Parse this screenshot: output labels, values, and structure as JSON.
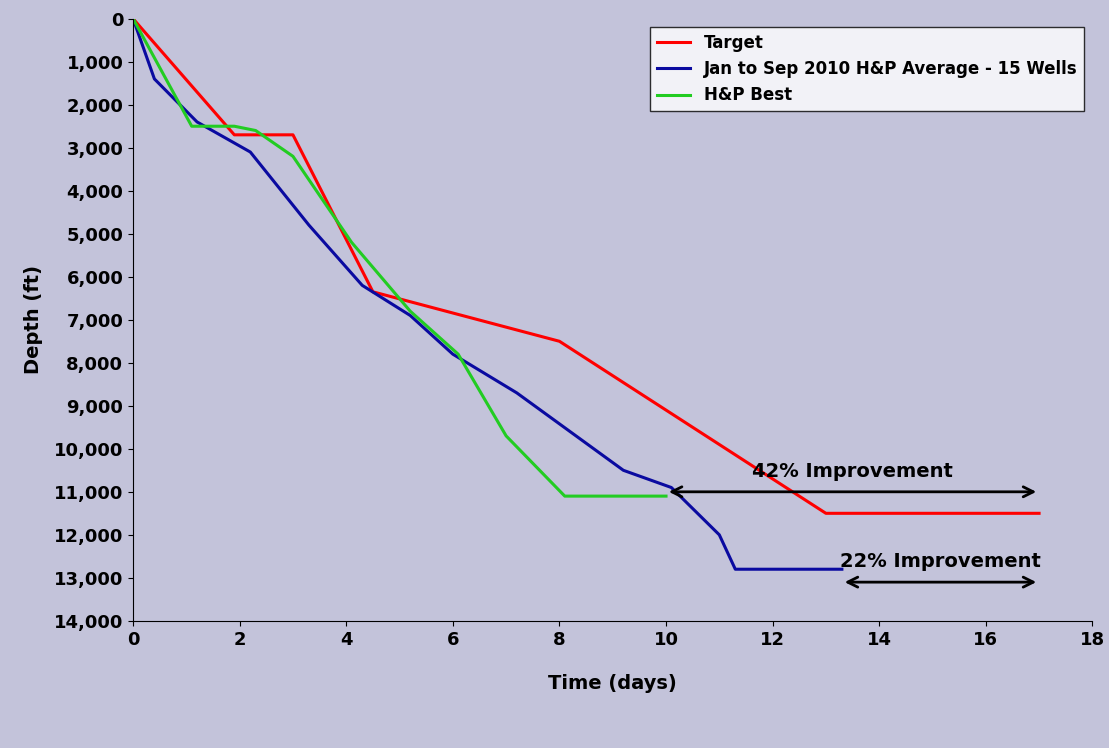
{
  "chart_data": {
    "type": "line",
    "x_label": "Time (days)",
    "y_label": "Depth (ft)",
    "xlim": [
      0,
      18
    ],
    "xticks": [
      0,
      2,
      4,
      6,
      8,
      10,
      12,
      14,
      16,
      18
    ],
    "ylim": [
      14000,
      0
    ],
    "yticks": [
      0,
      {
        "value": 1000,
        "label": "1,000"
      },
      {
        "value": 2000,
        "label": "2,000"
      },
      {
        "value": 3000,
        "label": "3,000"
      },
      {
        "value": 4000,
        "label": "4,000"
      },
      {
        "value": 5000,
        "label": "5,000"
      },
      {
        "value": 6000,
        "label": "6,000"
      },
      {
        "value": 7000,
        "label": "7,000"
      },
      {
        "value": 8000,
        "label": "8,000"
      },
      {
        "value": 9000,
        "label": "9,000"
      },
      {
        "value": 10000,
        "label": "10,000"
      },
      {
        "value": 11000,
        "label": "11,000"
      },
      {
        "value": 12000,
        "label": "12,000"
      },
      {
        "value": 13000,
        "label": "13,000"
      },
      {
        "value": 14000,
        "label": "14,000"
      }
    ],
    "grid": false,
    "legend": "upper right",
    "series": [
      {
        "name": "Target",
        "color": "#ff0000",
        "x": [
          0,
          1.9,
          3.0,
          4.5,
          8.0,
          13.0,
          17.0
        ],
        "values": [
          0,
          2700,
          2700,
          6350,
          7500,
          11500,
          11500
        ]
      },
      {
        "name": "Jan to Sep 2010 H&P Average - 15 Wells",
        "color": "#0a0aa0",
        "x": [
          0,
          0.4,
          1.2,
          2.2,
          3.3,
          4.3,
          5.2,
          6.0,
          7.2,
          9.2,
          10.1,
          11.0,
          11.3,
          13.3
        ],
        "values": [
          0,
          1400,
          2400,
          3100,
          4800,
          6200,
          6900,
          7800,
          8700,
          10500,
          10900,
          12000,
          12800,
          12800
        ]
      },
      {
        "name": "H&P Best",
        "color": "#22cc22",
        "x": [
          0,
          1.1,
          1.9,
          2.3,
          3.0,
          4.1,
          5.2,
          6.1,
          7.0,
          8.1,
          10.0
        ],
        "values": [
          0,
          2500,
          2500,
          2600,
          3200,
          5200,
          6800,
          7800,
          9700,
          11100,
          11100
        ]
      }
    ],
    "annotations": [
      {
        "text": "42% Improvement",
        "x_from": 10,
        "x_to": 17,
        "y": 11000
      },
      {
        "text": "22% Improvement",
        "x_from": 13.3,
        "x_to": 17,
        "y": 13100
      }
    ]
  }
}
